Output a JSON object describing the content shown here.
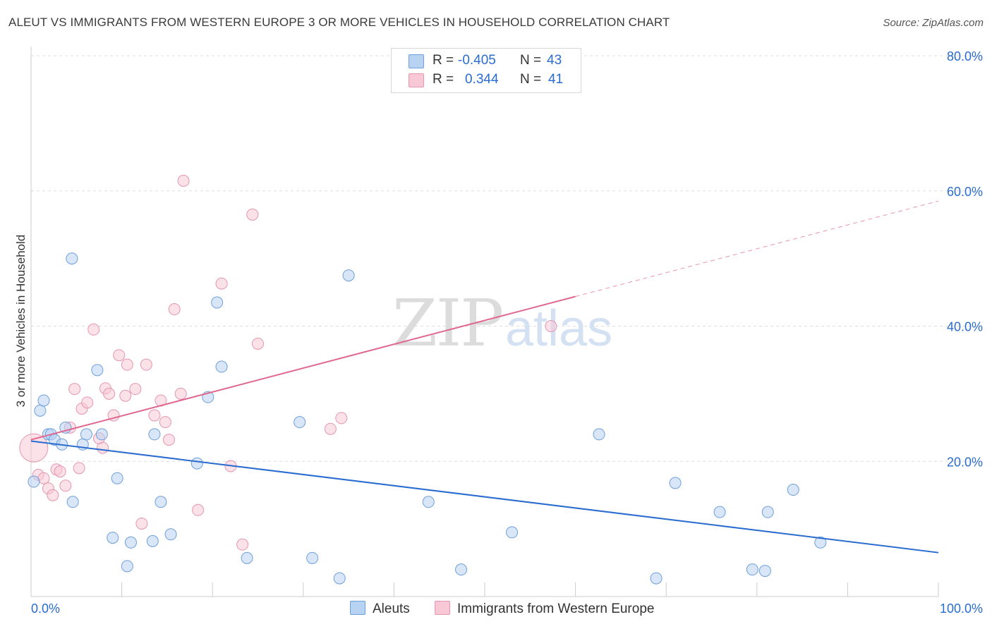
{
  "title": "ALEUT VS IMMIGRANTS FROM WESTERN EUROPE 3 OR MORE VEHICLES IN HOUSEHOLD CORRELATION CHART",
  "source": "Source: ZipAtlas.com",
  "watermark": {
    "zip": "ZIP",
    "atlas": "atlas"
  },
  "legend": {
    "aleut": {
      "r_label": "R =",
      "r_value": "-0.405",
      "n_label": "N =",
      "n_value": "43"
    },
    "immigrants": {
      "r_label": "R =",
      "r_value": "0.344",
      "n_label": "N =",
      "n_value": "41"
    }
  },
  "bottom_legend": {
    "aleut": "Aleuts",
    "immigrants": "Immigrants from Western Europe"
  },
  "colors": {
    "aleut_fill": "#b8d2f2",
    "aleut_stroke": "#6d9fdc",
    "aleut_line": "#2a6ccf",
    "imm_fill": "#f8c8d6",
    "imm_stroke": "#e596b0",
    "imm_line": "#e0678f",
    "axis_text": "#2a6ccf",
    "grid": "#dddddd"
  },
  "chart_data": {
    "type": "scatter",
    "title": "ALEUT VS IMMIGRANTS FROM WESTERN EUROPE 3 OR MORE VEHICLES IN HOUSEHOLD CORRELATION CHART",
    "xlabel": "",
    "ylabel": "3 or more Vehicles in Household",
    "xlim": [
      0,
      100
    ],
    "ylim": [
      0,
      80
    ],
    "x_tick_labels": [
      "0.0%",
      "100.0%"
    ],
    "y_ticks": [
      20,
      40,
      60,
      80
    ],
    "y_tick_labels": [
      "20.0%",
      "40.0%",
      "60.0%",
      "80.0%"
    ],
    "series": [
      {
        "name": "Aleuts",
        "r": -0.405,
        "n": 43,
        "trend": {
          "x0": 0,
          "y0": 23.0,
          "x1": 100,
          "y1": 6.5
        },
        "points": [
          [
            0.3,
            17.0
          ],
          [
            1.0,
            27.5
          ],
          [
            1.4,
            29.0
          ],
          [
            1.9,
            24.0
          ],
          [
            2.2,
            24.0
          ],
          [
            2.6,
            23.2
          ],
          [
            3.4,
            22.5
          ],
          [
            3.8,
            25.0
          ],
          [
            4.6,
            14.0
          ],
          [
            4.5,
            50.0
          ],
          [
            5.7,
            22.5
          ],
          [
            6.1,
            24.0
          ],
          [
            7.3,
            33.5
          ],
          [
            7.8,
            24.0
          ],
          [
            9.0,
            8.7
          ],
          [
            9.5,
            17.5
          ],
          [
            10.6,
            4.5
          ],
          [
            11.0,
            8.0
          ],
          [
            13.4,
            8.2
          ],
          [
            13.6,
            24.0
          ],
          [
            14.3,
            14.0
          ],
          [
            15.4,
            9.2
          ],
          [
            18.3,
            19.7
          ],
          [
            19.5,
            29.5
          ],
          [
            20.5,
            43.5
          ],
          [
            21.0,
            34.0
          ],
          [
            23.8,
            5.7
          ],
          [
            29.6,
            25.8
          ],
          [
            31.0,
            5.7
          ],
          [
            34.0,
            2.7
          ],
          [
            35.0,
            47.5
          ],
          [
            43.8,
            14.0
          ],
          [
            47.4,
            4.0
          ],
          [
            53.0,
            9.5
          ],
          [
            62.6,
            24.0
          ],
          [
            68.9,
            2.7
          ],
          [
            71.0,
            16.8
          ],
          [
            75.9,
            12.5
          ],
          [
            79.5,
            4.0
          ],
          [
            80.9,
            3.8
          ],
          [
            81.2,
            12.5
          ],
          [
            84.0,
            15.8
          ],
          [
            87.0,
            8.0
          ]
        ]
      },
      {
        "name": "Immigrants from Western Europe",
        "r": 0.344,
        "n": 41,
        "trend": {
          "x0": 0,
          "y0": 23.2,
          "x1": 100,
          "y1": 58.5,
          "solid_until_x": 60
        },
        "points": [
          [
            0.3,
            22.0
          ],
          [
            0.8,
            18.0
          ],
          [
            1.4,
            17.5
          ],
          [
            1.9,
            16.0
          ],
          [
            2.4,
            15.0
          ],
          [
            2.8,
            18.8
          ],
          [
            3.2,
            18.5
          ],
          [
            3.8,
            16.4
          ],
          [
            4.3,
            25.0
          ],
          [
            4.8,
            30.7
          ],
          [
            5.3,
            19.0
          ],
          [
            5.6,
            27.8
          ],
          [
            6.2,
            28.7
          ],
          [
            6.9,
            39.5
          ],
          [
            7.5,
            23.4
          ],
          [
            7.9,
            22.0
          ],
          [
            8.2,
            30.8
          ],
          [
            8.6,
            30.0
          ],
          [
            9.1,
            26.8
          ],
          [
            9.7,
            35.7
          ],
          [
            10.4,
            29.7
          ],
          [
            10.6,
            34.3
          ],
          [
            11.5,
            30.7
          ],
          [
            12.2,
            10.8
          ],
          [
            12.7,
            34.3
          ],
          [
            13.6,
            26.8
          ],
          [
            14.3,
            29.0
          ],
          [
            14.8,
            25.8
          ],
          [
            15.2,
            23.2
          ],
          [
            15.8,
            42.5
          ],
          [
            16.5,
            30.0
          ],
          [
            16.8,
            61.5
          ],
          [
            18.4,
            12.8
          ],
          [
            21.0,
            46.3
          ],
          [
            22.0,
            19.3
          ],
          [
            23.3,
            7.7
          ],
          [
            24.4,
            56.5
          ],
          [
            25.0,
            37.4
          ],
          [
            33.0,
            24.8
          ],
          [
            34.2,
            26.4
          ],
          [
            57.3,
            40.0
          ]
        ]
      }
    ]
  }
}
